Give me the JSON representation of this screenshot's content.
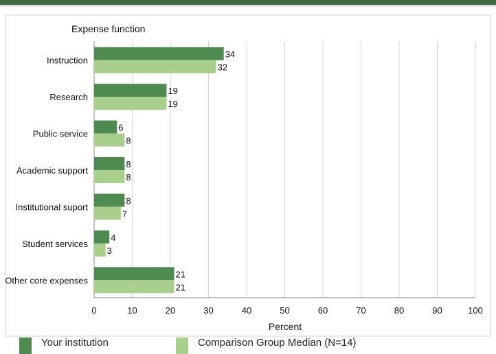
{
  "chart_data": {
    "type": "bar",
    "orientation": "horizontal",
    "title": "Expense function",
    "xlabel": "Percent",
    "ylabel": "",
    "xlim": [
      0,
      100
    ],
    "x_ticks": [
      0,
      10,
      20,
      30,
      40,
      50,
      60,
      70,
      80,
      90,
      100
    ],
    "grid": "vertical",
    "legend_position": "bottom",
    "categories": [
      "Instruction",
      "Research",
      "Public service",
      "Academic support",
      "Institutional suport",
      "Student services",
      "Other core expenses"
    ],
    "series": [
      {
        "name": "Your institution",
        "color": "#4f8a50",
        "values": [
          34,
          19,
          6,
          8,
          8,
          4,
          21
        ]
      },
      {
        "name": "Comparison Group Median (N=14)",
        "color": "#a9cf8c",
        "values": [
          32,
          19,
          8,
          8,
          7,
          3,
          21
        ]
      }
    ]
  }
}
